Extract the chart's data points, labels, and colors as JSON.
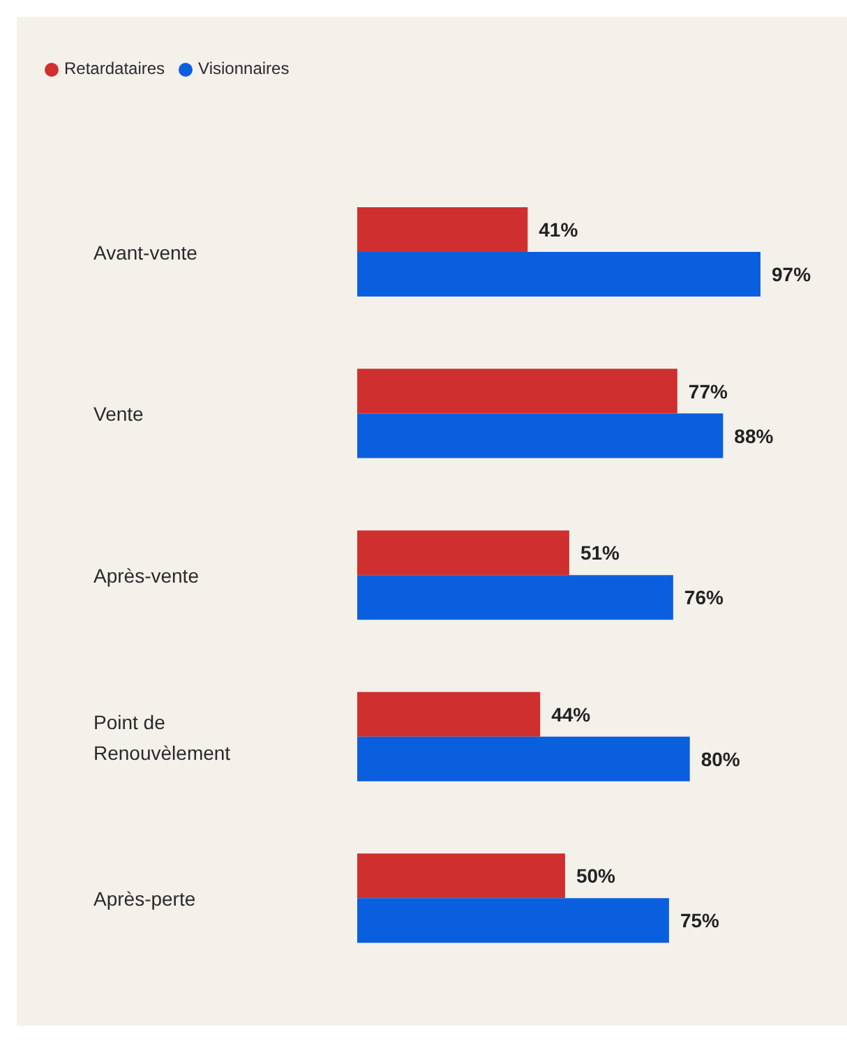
{
  "chart_data": {
    "type": "bar",
    "orientation": "horizontal",
    "categories": [
      "Avant-vente",
      "Vente",
      "Après-vente",
      "Point de Renouvèlement",
      "Après-perte"
    ],
    "series": [
      {
        "name": "Retardataires",
        "color": "#d02f2f",
        "values": [
          41,
          77,
          51,
          44,
          50
        ],
        "value_labels": [
          "41%",
          "77%",
          "51%",
          "44%",
          "50%"
        ]
      },
      {
        "name": "Visionnaires",
        "color": "#0a5fde",
        "values": [
          97,
          88,
          76,
          80,
          75
        ],
        "value_labels": [
          "97%",
          "88%",
          "76%",
          "80%",
          "75%"
        ]
      }
    ],
    "legend": "top left",
    "grid": false
  }
}
